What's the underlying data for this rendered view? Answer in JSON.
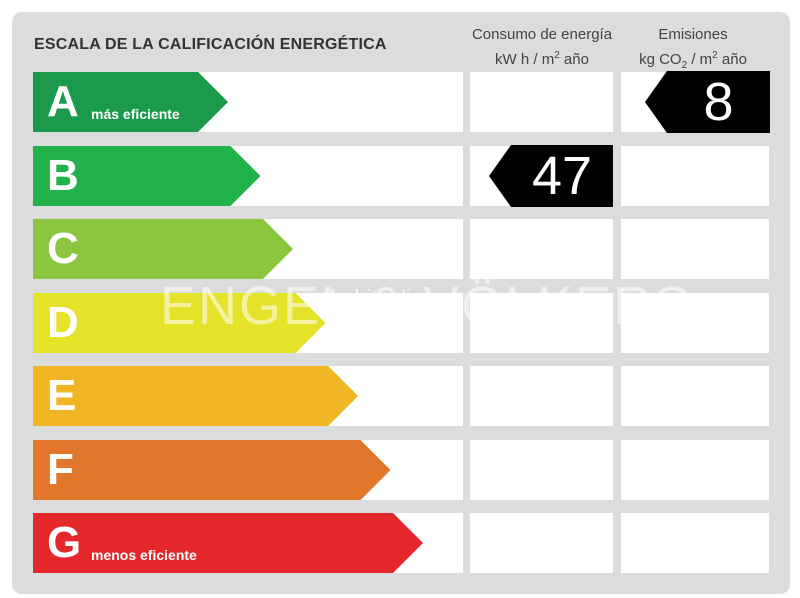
{
  "title": "ESCALA DE LA CALIFICACIÓN ENERGÉTICA",
  "consumption_header": {
    "line1": "Consumo de energía",
    "unit_a": "kW h  / m",
    "unit_sup": "2",
    "unit_b": " año"
  },
  "emissions_header": {
    "line1": "Emisiones",
    "unit_a": "kg CO",
    "unit_sub": "2",
    "unit_b": "  / m",
    "unit_sup": "2",
    "unit_c": " año"
  },
  "ratings": [
    {
      "letter": "A",
      "sublabel": "más eficiente",
      "color": "#1a9a4a"
    },
    {
      "letter": "B",
      "sublabel": "",
      "color": "#22b24c"
    },
    {
      "letter": "C",
      "sublabel": "",
      "color": "#8cc63f"
    },
    {
      "letter": "D",
      "sublabel": "",
      "color": "#e5e22a"
    },
    {
      "letter": "E",
      "sublabel": "",
      "color": "#f0b523"
    },
    {
      "letter": "F",
      "sublabel": "",
      "color": "#e1772a"
    },
    {
      "letter": "G",
      "sublabel": "menos eficiente",
      "color": "#e3272b"
    }
  ],
  "consumption": {
    "value": "47",
    "rating": "B"
  },
  "emissions": {
    "value": "8",
    "rating": "A"
  },
  "watermark": {
    "main": "ENGEL & VÖLKERS",
    "overlay": "habitaclia"
  },
  "badge_color": "#000000"
}
